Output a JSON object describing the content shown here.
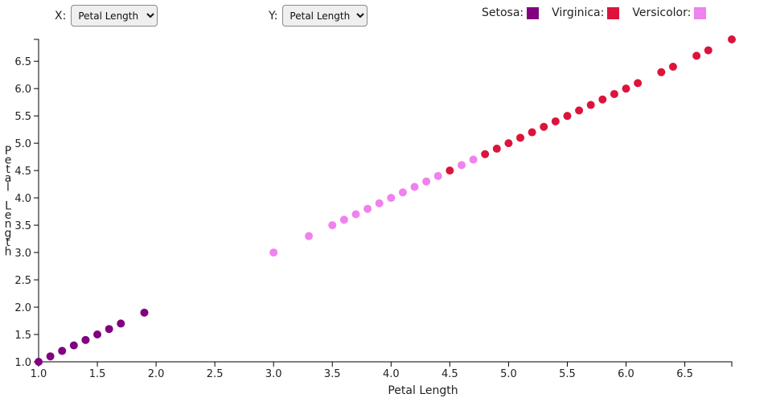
{
  "controls": {
    "x": {
      "label": "X:",
      "selected": "Petal Length"
    },
    "y": {
      "label": "Y:",
      "selected": "Petal Length"
    }
  },
  "legend": [
    {
      "label": "Setosa:",
      "color": "#800080"
    },
    {
      "label": "Virginica:",
      "color": "#dc143c"
    },
    {
      "label": "Versicolor:",
      "color": "#ee82ee"
    }
  ],
  "chart_data": {
    "type": "scatter",
    "xlabel": "Petal Length",
    "ylabel": "Petal Length",
    "xlim": [
      1.0,
      6.9
    ],
    "ylim": [
      1.0,
      6.9
    ],
    "x_ticks": [
      "1.0",
      "1.5",
      "2.0",
      "2.5",
      "3.0",
      "3.5",
      "4.0",
      "4.5",
      "5.0",
      "5.5",
      "6.0",
      "6.5"
    ],
    "y_ticks": [
      "1.0",
      "1.5",
      "2.0",
      "2.5",
      "3.0",
      "3.5",
      "4.0",
      "4.5",
      "5.0",
      "5.5",
      "6.0",
      "6.5"
    ],
    "grid": false,
    "legend_position": "top-right",
    "series": [
      {
        "name": "Setosa",
        "color": "#800080",
        "x": [
          1.0,
          1.1,
          1.2,
          1.3,
          1.4,
          1.5,
          1.6,
          1.7,
          1.9
        ],
        "y": [
          1.0,
          1.1,
          1.2,
          1.3,
          1.4,
          1.5,
          1.6,
          1.7,
          1.9
        ]
      },
      {
        "name": "Versicolor",
        "color": "#ee82ee",
        "x": [
          3.0,
          3.3,
          3.5,
          3.6,
          3.7,
          3.8,
          3.9,
          4.0,
          4.1,
          4.2,
          4.3,
          4.4,
          4.6,
          4.7
        ],
        "y": [
          3.0,
          3.3,
          3.5,
          3.6,
          3.7,
          3.8,
          3.9,
          4.0,
          4.1,
          4.2,
          4.3,
          4.4,
          4.6,
          4.7
        ]
      },
      {
        "name": "Virginica",
        "color": "#dc143c",
        "x": [
          4.5,
          4.8,
          4.9,
          5.0,
          5.1,
          5.2,
          5.3,
          5.4,
          5.5,
          5.6,
          5.7,
          5.8,
          5.9,
          6.0,
          6.1,
          6.3,
          6.4,
          6.6,
          6.7,
          6.9
        ],
        "y": [
          4.5,
          4.8,
          4.9,
          5.0,
          5.1,
          5.2,
          5.3,
          5.4,
          5.5,
          5.6,
          5.7,
          5.8,
          5.9,
          6.0,
          6.1,
          6.3,
          6.4,
          6.6,
          6.7,
          6.9
        ]
      }
    ]
  }
}
